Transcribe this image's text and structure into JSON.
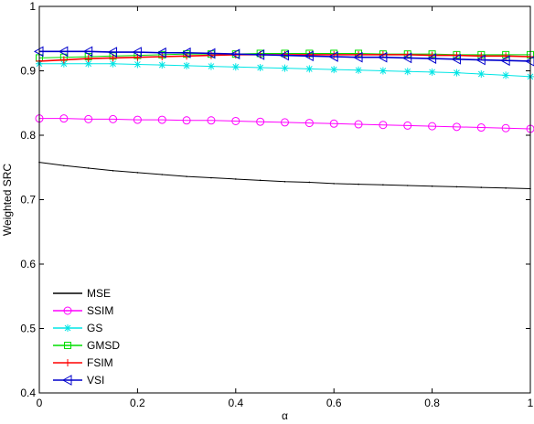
{
  "chart_data": {
    "type": "line",
    "xlabel": "α",
    "ylabel": "Weighted SRC",
    "xlim": [
      0,
      1
    ],
    "ylim": [
      0.4,
      1
    ],
    "xticks": [
      "0",
      "0.2",
      "0.4",
      "0.6",
      "0.8",
      "1"
    ],
    "yticks": [
      "0.4",
      "0.5",
      "0.6",
      "0.7",
      "0.8",
      "0.9",
      "1"
    ],
    "grid": false,
    "legend_position": "bottom-left",
    "x": [
      0,
      0.05,
      0.1,
      0.15,
      0.2,
      0.25,
      0.3,
      0.35,
      0.4,
      0.45,
      0.5,
      0.55,
      0.6,
      0.65,
      0.7,
      0.75,
      0.8,
      0.85,
      0.9,
      0.95,
      1.0
    ],
    "series": [
      {
        "name": "MSE",
        "color": "#000000",
        "marker": "point",
        "values": [
          0.758,
          0.753,
          0.749,
          0.745,
          0.742,
          0.739,
          0.736,
          0.734,
          0.732,
          0.73,
          0.728,
          0.727,
          0.725,
          0.724,
          0.723,
          0.722,
          0.721,
          0.72,
          0.719,
          0.718,
          0.717
        ]
      },
      {
        "name": "SSIM",
        "color": "#ff00ff",
        "marker": "circle",
        "values": [
          0.826,
          0.826,
          0.825,
          0.825,
          0.824,
          0.824,
          0.823,
          0.823,
          0.822,
          0.821,
          0.82,
          0.819,
          0.818,
          0.817,
          0.816,
          0.815,
          0.814,
          0.813,
          0.812,
          0.811,
          0.81
        ]
      },
      {
        "name": "GS",
        "color": "#00e5e5",
        "marker": "star",
        "values": [
          0.911,
          0.911,
          0.911,
          0.911,
          0.91,
          0.909,
          0.908,
          0.907,
          0.906,
          0.905,
          0.904,
          0.903,
          0.902,
          0.901,
          0.9,
          0.899,
          0.898,
          0.897,
          0.895,
          0.893,
          0.891
        ]
      },
      {
        "name": "GMSD",
        "color": "#00dd00",
        "marker": "square",
        "values": [
          0.92,
          0.921,
          0.922,
          0.923,
          0.924,
          0.925,
          0.926,
          0.926,
          0.926,
          0.927,
          0.927,
          0.927,
          0.927,
          0.927,
          0.926,
          0.926,
          0.926,
          0.925,
          0.925,
          0.925,
          0.925
        ]
      },
      {
        "name": "FSIM",
        "color": "#ff0000",
        "marker": "plus",
        "values": [
          0.915,
          0.917,
          0.919,
          0.92,
          0.921,
          0.922,
          0.923,
          0.924,
          0.925,
          0.925,
          0.925,
          0.925,
          0.925,
          0.925,
          0.925,
          0.925,
          0.924,
          0.924,
          0.923,
          0.923,
          0.922
        ]
      },
      {
        "name": "VSI",
        "color": "#0000cc",
        "marker": "triangle-left",
        "values": [
          0.93,
          0.93,
          0.93,
          0.929,
          0.929,
          0.928,
          0.928,
          0.927,
          0.926,
          0.925,
          0.924,
          0.923,
          0.922,
          0.921,
          0.921,
          0.92,
          0.919,
          0.918,
          0.917,
          0.916,
          0.915
        ]
      }
    ]
  }
}
